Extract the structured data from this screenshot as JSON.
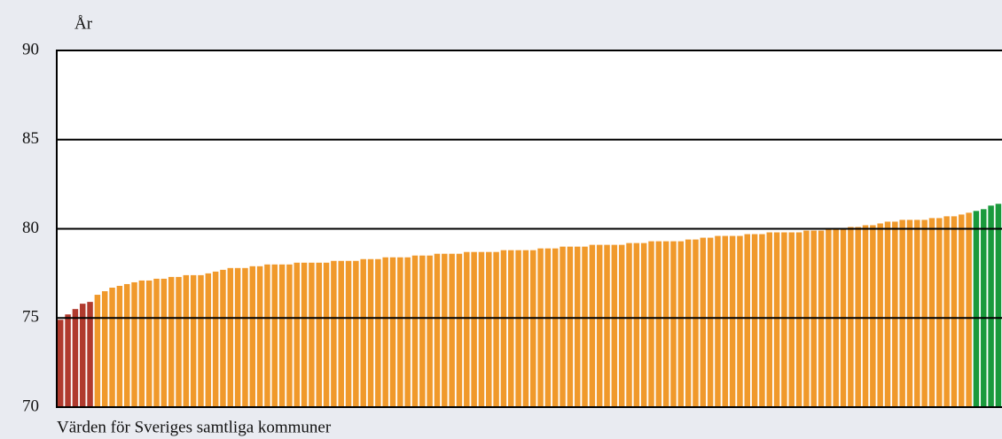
{
  "chart_data": {
    "type": "bar",
    "ylabel": "År",
    "xlabel": "Värden för Sveriges samtliga kommuner",
    "ylim": [
      70,
      90
    ],
    "yticks": [
      70,
      75,
      80,
      85,
      90
    ],
    "grid": true,
    "series": [
      {
        "color": "#b03a2e",
        "values": [
          74.9,
          75.2,
          75.5,
          75.8,
          75.9
        ]
      },
      {
        "color": "#f0992b",
        "values": [
          76.3,
          76.5,
          76.7,
          76.8,
          76.9,
          77.0,
          77.1,
          77.1,
          77.2,
          77.2,
          77.3,
          77.3,
          77.4,
          77.4,
          77.4,
          77.5,
          77.6,
          77.7,
          77.8,
          77.8,
          77.8,
          77.9,
          77.9,
          78.0,
          78.0,
          78.0,
          78.0,
          78.1,
          78.1,
          78.1,
          78.1,
          78.1,
          78.2,
          78.2,
          78.2,
          78.2,
          78.3,
          78.3,
          78.3,
          78.4,
          78.4,
          78.4,
          78.4,
          78.5,
          78.5,
          78.5,
          78.6,
          78.6,
          78.6,
          78.6,
          78.7,
          78.7,
          78.7,
          78.7,
          78.7,
          78.8,
          78.8,
          78.8,
          78.8,
          78.8,
          78.9,
          78.9,
          78.9,
          79.0,
          79.0,
          79.0,
          79.0,
          79.1,
          79.1,
          79.1,
          79.1,
          79.1,
          79.2,
          79.2,
          79.2,
          79.3,
          79.3,
          79.3,
          79.3,
          79.3,
          79.4,
          79.4,
          79.5,
          79.5,
          79.6,
          79.6,
          79.6,
          79.6,
          79.7,
          79.7,
          79.7,
          79.8,
          79.8,
          79.8,
          79.8,
          79.8,
          79.9,
          79.9,
          79.9,
          80.0,
          80.0,
          80.0,
          80.1,
          80.1,
          80.2,
          80.2,
          80.3,
          80.4,
          80.4,
          80.5,
          80.5,
          80.5,
          80.5,
          80.6,
          80.6,
          80.7,
          80.7,
          80.8,
          80.9
        ]
      },
      {
        "color": "#1a9a3c",
        "values": [
          81.0,
          81.1,
          81.3,
          81.4
        ]
      }
    ]
  }
}
